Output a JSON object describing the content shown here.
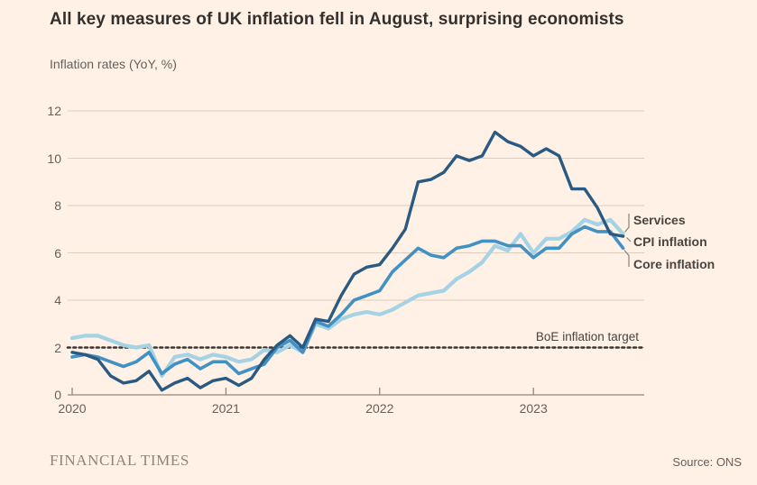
{
  "header": {
    "title": "All key measures of UK inflation fell in August, surprising economists",
    "subtitle": "Inflation rates (YoY, %)"
  },
  "chart_data": {
    "type": "line",
    "title": "All key measures of UK inflation fell in August, surprising economists",
    "ylabel": "Inflation rates (YoY, %)",
    "x_unit": "month",
    "x_start": "2020-01",
    "x_end": "2023-08",
    "x_tick_labels": [
      "2020",
      "2021",
      "2022",
      "2023"
    ],
    "y_ticks": [
      0,
      2,
      4,
      6,
      8,
      10,
      12
    ],
    "ylim": [
      0,
      12
    ],
    "grid": "horizontal",
    "legend_position": "right-end-labels",
    "target_line": {
      "label": "BoE inflation target",
      "value": 2,
      "color": "#3b3531"
    },
    "end_labels": [
      "Services",
      "CPI inflation",
      "Core inflation"
    ],
    "series": [
      {
        "name": "Services",
        "color": "#a5d2e4",
        "width": 4.2,
        "values": [
          2.4,
          2.5,
          2.5,
          2.3,
          2.1,
          2.0,
          2.1,
          0.8,
          1.6,
          1.7,
          1.5,
          1.7,
          1.6,
          1.4,
          1.5,
          1.9,
          1.8,
          2.1,
          1.8,
          3.0,
          2.8,
          3.2,
          3.4,
          3.5,
          3.4,
          3.6,
          3.9,
          4.2,
          4.3,
          4.4,
          4.9,
          5.2,
          5.6,
          6.3,
          6.1,
          6.8,
          6.0,
          6.6,
          6.6,
          6.9,
          7.4,
          7.2,
          7.4,
          6.8
        ]
      },
      {
        "name": "Core inflation",
        "color": "#4191c5",
        "width": 3.6,
        "values": [
          1.6,
          1.7,
          1.6,
          1.4,
          1.2,
          1.4,
          1.8,
          0.9,
          1.3,
          1.5,
          1.1,
          1.4,
          1.4,
          0.9,
          1.1,
          1.3,
          2.0,
          2.3,
          1.8,
          3.1,
          2.9,
          3.4,
          4.0,
          4.2,
          4.4,
          5.2,
          5.7,
          6.2,
          5.9,
          5.8,
          6.2,
          6.3,
          6.5,
          6.5,
          6.3,
          6.3,
          5.8,
          6.2,
          6.2,
          6.8,
          7.1,
          6.9,
          6.9,
          6.2
        ]
      },
      {
        "name": "CPI inflation",
        "color": "#2a5a82",
        "width": 3.4,
        "values": [
          1.8,
          1.7,
          1.5,
          0.8,
          0.5,
          0.6,
          1.0,
          0.2,
          0.5,
          0.7,
          0.3,
          0.6,
          0.7,
          0.4,
          0.7,
          1.5,
          2.1,
          2.5,
          2.0,
          3.2,
          3.1,
          4.2,
          5.1,
          5.4,
          5.5,
          6.2,
          7.0,
          9.0,
          9.1,
          9.4,
          10.1,
          9.9,
          10.1,
          11.1,
          10.7,
          10.5,
          10.1,
          10.4,
          10.1,
          8.7,
          8.7,
          7.9,
          6.8,
          6.7
        ]
      }
    ],
    "style": {
      "background": "#FFF1E5",
      "grid_color": "#dccdbc",
      "axis_color": "#8f8679",
      "connector_color": "#8a8178"
    }
  },
  "footer": {
    "brand": "FINANCIAL TIMES",
    "source": "Source: ONS"
  }
}
